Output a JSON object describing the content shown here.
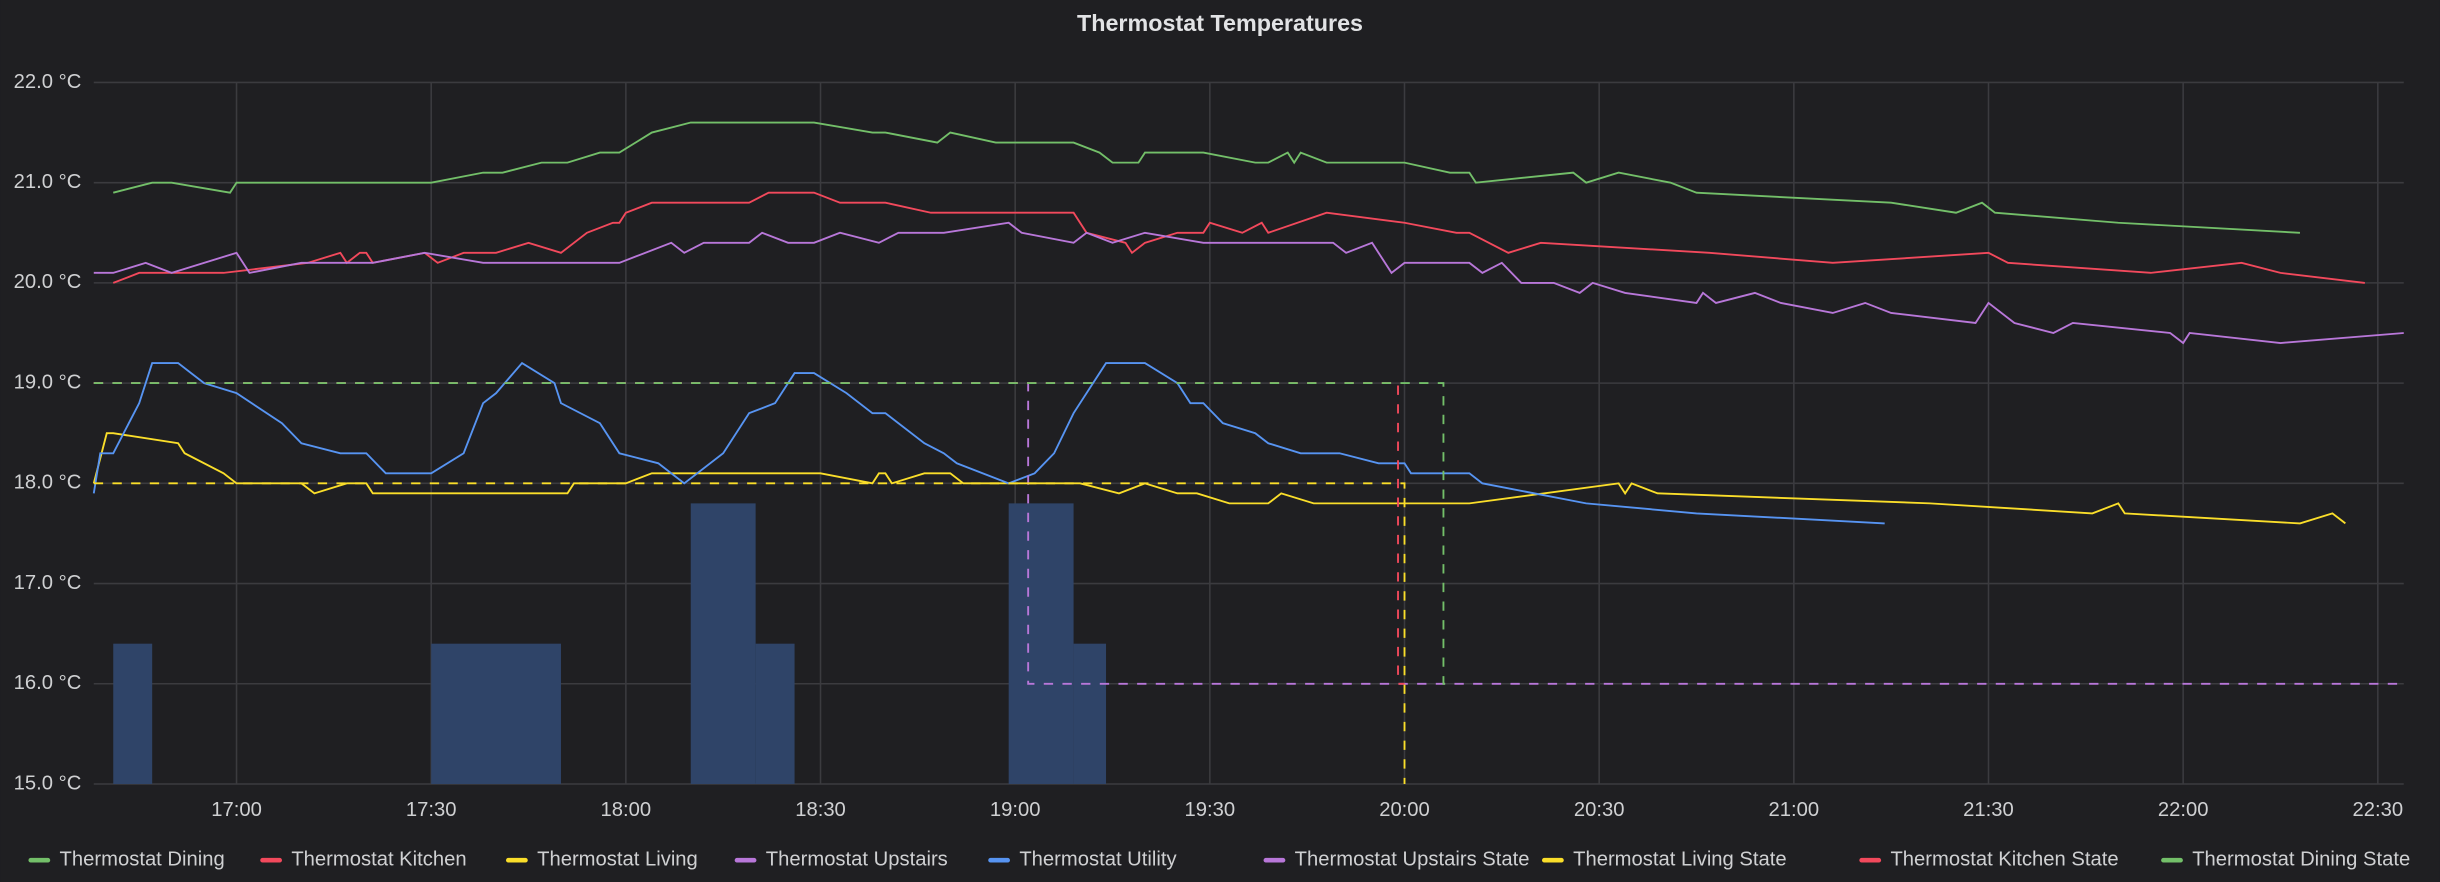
{
  "chart_data": {
    "type": "line",
    "title": "Thermostat Temperatures",
    "xlim": [
      "16:38",
      "22:34"
    ],
    "xticks": [
      "17:00",
      "17:30",
      "18:00",
      "18:30",
      "19:00",
      "19:30",
      "20:00",
      "20:30",
      "21:00",
      "21:30",
      "22:00",
      "22:30"
    ],
    "ylim": [
      15,
      22
    ],
    "yticks": [
      {
        "value": 15,
        "label": "15.0 °C"
      },
      {
        "value": 16,
        "label": "16.0 °C"
      },
      {
        "value": 17,
        "label": "17.0 °C"
      },
      {
        "value": 18,
        "label": "18.0 °C"
      },
      {
        "value": 19,
        "label": "19.0 °C"
      },
      {
        "value": 20,
        "label": "20.0 °C"
      },
      {
        "value": 21,
        "label": "21.0 °C"
      },
      {
        "value": 22,
        "label": "22.0 °C"
      }
    ],
    "grid": true,
    "legend": "bottom",
    "bars": {
      "color": "#2f4468",
      "items": [
        {
          "start": "16:41",
          "end": "16:47",
          "value": 16.4
        },
        {
          "start": "17:30",
          "end": "17:50",
          "value": 16.4
        },
        {
          "start": "18:10",
          "end": "18:20",
          "value": 17.8
        },
        {
          "start": "18:20",
          "end": "18:26",
          "value": 16.4
        },
        {
          "start": "18:59",
          "end": "19:09",
          "value": 17.8
        },
        {
          "start": "19:09",
          "end": "19:14",
          "value": 16.4
        }
      ]
    },
    "series": [
      {
        "name": "Thermostat Dining",
        "color": "#73bf69",
        "x": [
          "16:41",
          "16:47",
          "16:50",
          "16:59",
          "17:00",
          "17:30",
          "17:38",
          "17:41",
          "17:47",
          "17:51",
          "17:56",
          "17:59",
          "18:04",
          "18:10",
          "18:29",
          "18:38",
          "18:40",
          "18:48",
          "18:50",
          "18:57",
          "19:09",
          "19:13",
          "19:15",
          "19:19",
          "19:20",
          "19:29",
          "19:37",
          "19:39",
          "19:42",
          "19:43",
          "19:44",
          "19:48",
          "20:00",
          "20:07",
          "20:10",
          "20:11",
          "20:26",
          "20:28",
          "20:33",
          "20:41",
          "20:45",
          "21:15",
          "21:25",
          "21:29",
          "21:31",
          "21:50",
          "22:18"
        ],
        "values": [
          20.9,
          21.0,
          21.0,
          20.9,
          21.0,
          21.0,
          21.1,
          21.1,
          21.2,
          21.2,
          21.3,
          21.3,
          21.5,
          21.6,
          21.6,
          21.5,
          21.5,
          21.4,
          21.5,
          21.4,
          21.4,
          21.3,
          21.2,
          21.2,
          21.3,
          21.3,
          21.2,
          21.2,
          21.3,
          21.2,
          21.3,
          21.2,
          21.2,
          21.1,
          21.1,
          21.0,
          21.1,
          21.0,
          21.1,
          21.0,
          20.9,
          20.8,
          20.7,
          20.8,
          20.7,
          20.6,
          20.5
        ]
      },
      {
        "name": "Thermostat Kitchen",
        "color": "#f2495c",
        "x": [
          "16:41",
          "16:45",
          "16:58",
          "17:11",
          "17:16",
          "17:17",
          "17:19",
          "17:20",
          "17:21",
          "17:29",
          "17:31",
          "17:35",
          "17:40",
          "17:45",
          "17:50",
          "17:54",
          "17:58",
          "17:59",
          "18:00",
          "18:04",
          "18:19",
          "18:22",
          "18:29",
          "18:33",
          "18:40",
          "18:47",
          "19:09",
          "19:11",
          "19:17",
          "19:18",
          "19:20",
          "19:25",
          "19:29",
          "19:30",
          "19:35",
          "19:38",
          "19:39",
          "19:48",
          "20:00",
          "20:08",
          "20:10",
          "20:16",
          "20:21",
          "20:47",
          "21:06",
          "21:30",
          "21:33",
          "21:55",
          "22:09",
          "22:15",
          "22:28"
        ],
        "values": [
          20.0,
          20.1,
          20.1,
          20.2,
          20.3,
          20.2,
          20.3,
          20.3,
          20.2,
          20.3,
          20.2,
          20.3,
          20.3,
          20.4,
          20.3,
          20.5,
          20.6,
          20.6,
          20.7,
          20.8,
          20.8,
          20.9,
          20.9,
          20.8,
          20.8,
          20.7,
          20.7,
          20.5,
          20.4,
          20.3,
          20.4,
          20.5,
          20.5,
          20.6,
          20.5,
          20.6,
          20.5,
          20.7,
          20.6,
          20.5,
          20.5,
          20.3,
          20.4,
          20.3,
          20.2,
          20.3,
          20.2,
          20.1,
          20.2,
          20.1,
          20.0
        ]
      },
      {
        "name": "Thermostat Living",
        "color": "#fade2a",
        "x": [
          "16:38",
          "16:40",
          "16:41",
          "16:51",
          "16:52",
          "16:58",
          "17:00",
          "17:10",
          "17:12",
          "17:17",
          "17:20",
          "17:21",
          "17:51",
          "17:52",
          "18:00",
          "18:04",
          "18:30",
          "18:38",
          "18:39",
          "18:40",
          "18:41",
          "18:46",
          "18:50",
          "18:52",
          "19:10",
          "19:16",
          "19:20",
          "19:25",
          "19:28",
          "19:33",
          "19:39",
          "19:41",
          "19:46",
          "20:00",
          "20:10",
          "20:33",
          "20:34",
          "20:35",
          "20:39",
          "21:21",
          "21:46",
          "21:50",
          "21:51",
          "22:18",
          "22:23",
          "22:25"
        ],
        "values": [
          18.0,
          18.5,
          18.5,
          18.4,
          18.3,
          18.1,
          18.0,
          18.0,
          17.9,
          18.0,
          18.0,
          17.9,
          17.9,
          18.0,
          18.0,
          18.1,
          18.1,
          18.0,
          18.1,
          18.1,
          18.0,
          18.1,
          18.1,
          18.0,
          18.0,
          17.9,
          18.0,
          17.9,
          17.9,
          17.8,
          17.8,
          17.9,
          17.8,
          17.8,
          17.8,
          18.0,
          17.9,
          18.0,
          17.9,
          17.8,
          17.7,
          17.8,
          17.7,
          17.6,
          17.7,
          17.6
        ]
      },
      {
        "name": "Thermostat Upstairs",
        "color": "#b877d9",
        "x": [
          "16:38",
          "16:41",
          "16:46",
          "16:50",
          "17:00",
          "17:02",
          "17:10",
          "17:21",
          "17:29",
          "17:38",
          "17:50",
          "17:59",
          "18:07",
          "18:09",
          "18:12",
          "18:19",
          "18:21",
          "18:25",
          "18:29",
          "18:33",
          "18:39",
          "18:42",
          "18:49",
          "18:59",
          "19:01",
          "19:09",
          "19:11",
          "19:15",
          "19:20",
          "19:29",
          "19:49",
          "19:51",
          "19:55",
          "19:58",
          "20:00",
          "20:10",
          "20:12",
          "20:15",
          "20:18",
          "20:23",
          "20:27",
          "20:29",
          "20:34",
          "20:45",
          "20:46",
          "20:48",
          "20:54",
          "20:58",
          "21:06",
          "21:11",
          "21:15",
          "21:28",
          "21:30",
          "21:34",
          "21:40",
          "21:43",
          "21:58",
          "22:00",
          "22:01",
          "22:15",
          "22:34"
        ],
        "values": [
          20.1,
          20.1,
          20.2,
          20.1,
          20.3,
          20.1,
          20.2,
          20.2,
          20.3,
          20.2,
          20.2,
          20.2,
          20.4,
          20.3,
          20.4,
          20.4,
          20.5,
          20.4,
          20.4,
          20.5,
          20.4,
          20.5,
          20.5,
          20.6,
          20.5,
          20.4,
          20.5,
          20.4,
          20.5,
          20.4,
          20.4,
          20.3,
          20.4,
          20.1,
          20.2,
          20.2,
          20.1,
          20.2,
          20.0,
          20.0,
          19.9,
          20.0,
          19.9,
          19.8,
          19.9,
          19.8,
          19.9,
          19.8,
          19.7,
          19.8,
          19.7,
          19.6,
          19.8,
          19.6,
          19.5,
          19.6,
          19.5,
          19.4,
          19.5,
          19.4,
          19.5
        ]
      },
      {
        "name": "Thermostat Utility",
        "color": "#5794f2",
        "x": [
          "16:38",
          "16:39",
          "16:41",
          "16:45",
          "16:47",
          "16:51",
          "16:53",
          "16:55",
          "17:00",
          "17:07",
          "17:10",
          "17:16",
          "17:20",
          "17:23",
          "17:30",
          "17:35",
          "17:38",
          "17:40",
          "17:44",
          "17:49",
          "17:50",
          "17:56",
          "17:59",
          "18:05",
          "18:09",
          "18:15",
          "18:19",
          "18:23",
          "18:26",
          "18:29",
          "18:34",
          "18:38",
          "18:40",
          "18:46",
          "18:49",
          "18:51",
          "18:59",
          "19:03",
          "19:06",
          "19:09",
          "19:14",
          "19:20",
          "19:25",
          "19:27",
          "19:29",
          "19:32",
          "19:37",
          "19:39",
          "19:44",
          "19:50",
          "19:56",
          "20:00",
          "20:01",
          "20:10",
          "20:12",
          "20:28",
          "20:45",
          "21:14"
        ],
        "values": [
          17.9,
          18.3,
          18.3,
          18.8,
          19.2,
          19.2,
          19.1,
          19.0,
          18.9,
          18.6,
          18.4,
          18.3,
          18.3,
          18.1,
          18.1,
          18.3,
          18.8,
          18.9,
          19.2,
          19.0,
          18.8,
          18.6,
          18.3,
          18.2,
          18.0,
          18.3,
          18.7,
          18.8,
          19.1,
          19.1,
          18.9,
          18.7,
          18.7,
          18.4,
          18.3,
          18.2,
          18.0,
          18.1,
          18.3,
          18.7,
          19.2,
          19.2,
          19.0,
          18.8,
          18.8,
          18.6,
          18.5,
          18.4,
          18.3,
          18.3,
          18.2,
          18.2,
          18.1,
          18.1,
          18.0,
          17.8,
          17.7,
          17.6
        ]
      },
      {
        "name": "Thermostat Upstairs State",
        "color": "#b877d9",
        "dashed": true,
        "x": [
          "16:38",
          "19:02",
          "19:02",
          "22:34"
        ],
        "values": [
          19.0,
          19.0,
          16.0,
          16.0
        ]
      },
      {
        "name": "Thermostat Living State",
        "color": "#fade2a",
        "dashed": true,
        "x": [
          "16:38",
          "20:00",
          "20:00"
        ],
        "values": [
          18.0,
          18.0,
          15.0
        ]
      },
      {
        "name": "Thermostat Kitchen State",
        "color": "#f2495c",
        "dashed": true,
        "x": [
          "16:38",
          "19:59",
          "19:59",
          "20:00"
        ],
        "values": [
          19.0,
          19.0,
          16.0,
          16.0
        ]
      },
      {
        "name": "Thermostat Dining State",
        "color": "#73bf69",
        "dashed": true,
        "x": [
          "16:38",
          "20:06",
          "20:06",
          "20:07"
        ],
        "values": [
          19.0,
          19.0,
          16.0,
          16.0
        ]
      }
    ]
  }
}
